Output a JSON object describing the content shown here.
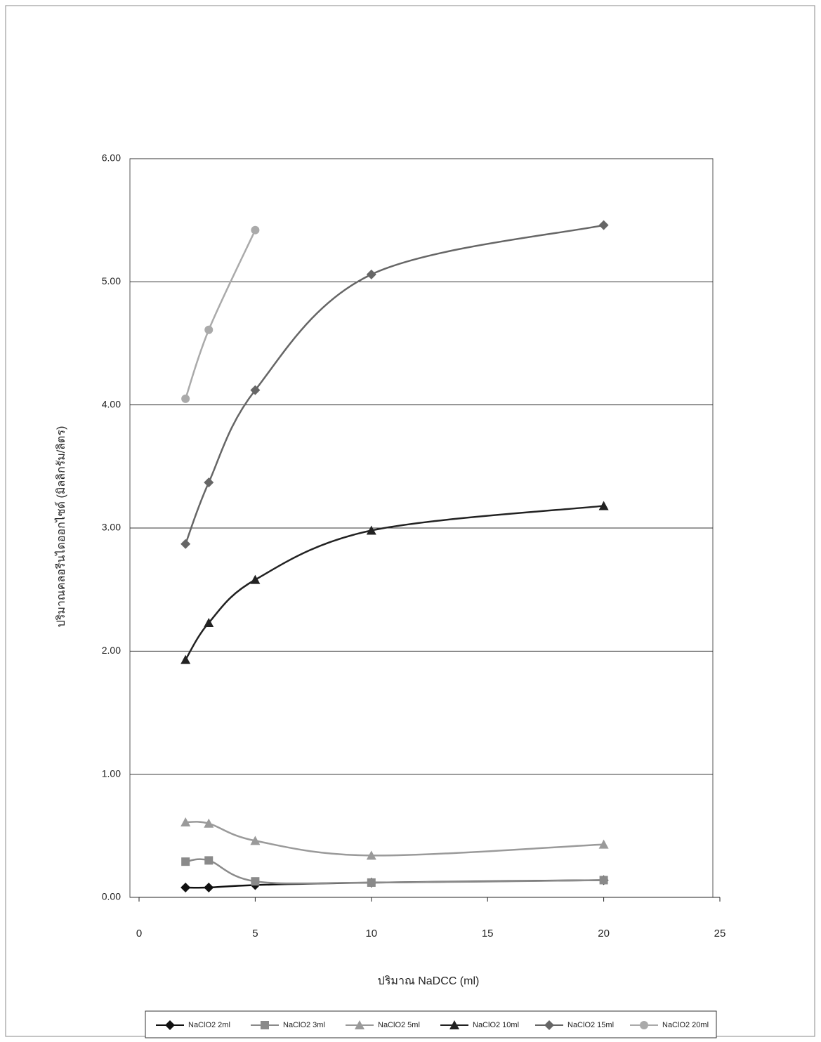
{
  "chart_data": {
    "type": "line",
    "x_label": "ปริมาณ NaDCC (ml)",
    "y_label": "ปริมาณคลอรีนไดออกไซด์ (มิลลิกรัม/ลิตร)",
    "x": [
      2,
      3,
      5,
      10,
      20
    ],
    "series": [
      {
        "name": "NaClO2 2ml",
        "color": "#111111",
        "marker": "diamond",
        "values": [
          0.08,
          0.08,
          0.1,
          0.12,
          0.14
        ]
      },
      {
        "name": "NaClO2 3ml",
        "color": "#8a8a8a",
        "marker": "square",
        "values": [
          0.29,
          0.3,
          0.13,
          0.12,
          0.14
        ]
      },
      {
        "name": "NaClO2 5ml",
        "color": "#9a9a9a",
        "marker": "triangle",
        "values": [
          0.61,
          0.6,
          0.46,
          0.34,
          0.43
        ]
      },
      {
        "name": "NaClO2 10ml",
        "color": "#222222",
        "marker": "triangle",
        "values": [
          1.93,
          2.23,
          2.58,
          2.98,
          3.18
        ]
      },
      {
        "name": "NaClO2 15ml",
        "color": "#666666",
        "marker": "diamond",
        "values": [
          2.87,
          3.37,
          4.12,
          5.06,
          5.46
        ]
      },
      {
        "name": "NaClO2 20ml",
        "color": "#aaaaaa",
        "marker": "circle",
        "values": [
          4.05,
          4.61,
          5.42,
          null,
          null
        ]
      }
    ],
    "xlim": [
      0,
      25
    ],
    "xticks": [
      0,
      5,
      10,
      15,
      20,
      25
    ],
    "ylim": [
      0,
      6
    ],
    "yticks": [
      {
        "value": 0,
        "label": "0.00"
      },
      {
        "value": 1,
        "label": "1.00"
      },
      {
        "value": 2,
        "label": "2.00"
      },
      {
        "value": 3,
        "label": "3.00"
      },
      {
        "value": 4,
        "label": "4.00"
      },
      {
        "value": 5,
        "label": "5.00"
      },
      {
        "value": 6,
        "label": "6.00"
      }
    ],
    "grid": true,
    "legend": "bottom"
  }
}
